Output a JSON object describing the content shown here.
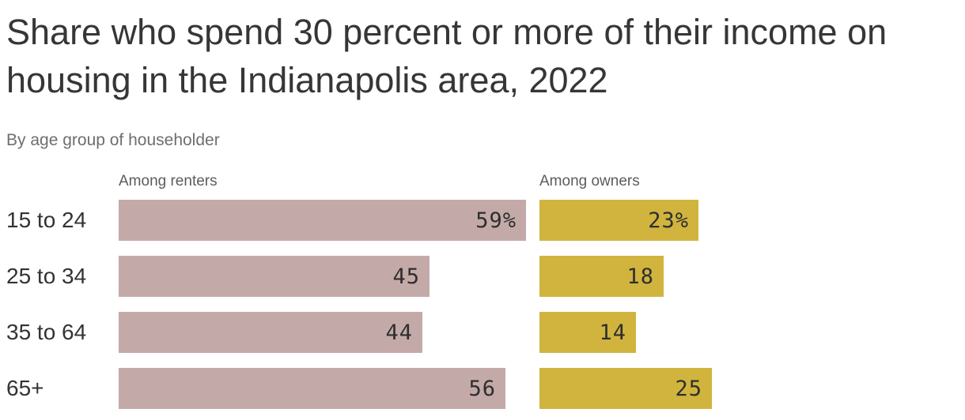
{
  "header": {
    "title": "Share who spend 30 percent or more of their income on housing in the Indianapolis area, 2022",
    "subtitle": "By age group of householder"
  },
  "chart_data": {
    "type": "bar",
    "orientation": "horizontal",
    "title": "Share who spend 30 percent or more of their income on housing in the Indianapolis area, 2022",
    "subtitle": "By age group of householder",
    "categories": [
      "15 to 24",
      "25 to 34",
      "35 to 64",
      "65+"
    ],
    "series": [
      {
        "name": "Among renters",
        "values": [
          59,
          45,
          44,
          56
        ],
        "labels": [
          "59%",
          "45",
          "44",
          "56"
        ],
        "color": "#c3aaa8"
      },
      {
        "name": "Among owners",
        "values": [
          23,
          18,
          14,
          25
        ],
        "labels": [
          "23%",
          "18",
          "14",
          "25"
        ],
        "color": "#d0b43e"
      }
    ],
    "unit": "percent",
    "xlim": [
      0,
      62
    ],
    "grid": false,
    "legend_position": "column-headers-above-bars",
    "value_labels": "inside-end",
    "colors": {
      "title_text": "#363636",
      "subtitle_text": "#6e6e6e",
      "column_header_text": "#5c5c5c",
      "category_text": "#333333",
      "value_text": "#2e2e2e",
      "background": "#ffffff"
    }
  }
}
